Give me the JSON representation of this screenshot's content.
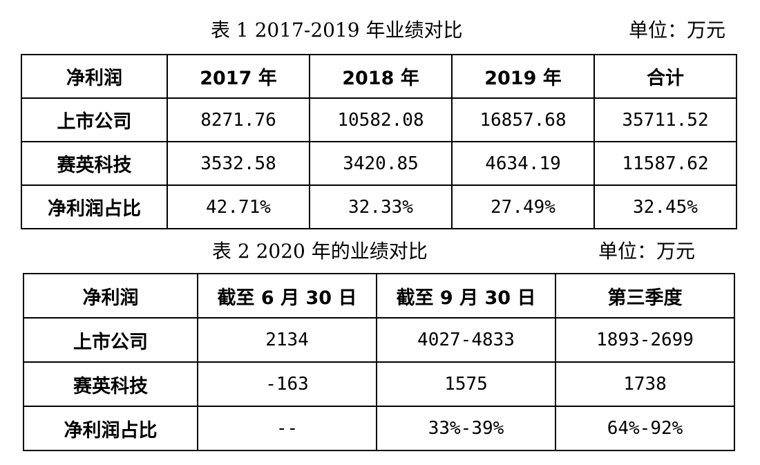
{
  "table1": {
    "caption": "表 1   2017-2019 年业绩对比",
    "unit": "单位：万元",
    "header": [
      "净利润",
      "2017 年",
      "2018 年",
      "2019 年",
      "合计"
    ],
    "rows": [
      {
        "label": "上市公司",
        "values": [
          "8271.76",
          "10582.08",
          "16857.68",
          "35711.52"
        ]
      },
      {
        "label": "赛英科技",
        "values": [
          "3532.58",
          "3420.85",
          "4634.19",
          "11587.62"
        ]
      },
      {
        "label": "净利润占比",
        "values": [
          "42.71%",
          "32.33%",
          "27.49%",
          "32.45%"
        ]
      }
    ]
  },
  "table2": {
    "caption": "表 2   2020 年的业绩对比",
    "unit": "单位：万元",
    "header": [
      "净利润",
      "截至 6 月 30 日",
      "截至 9 月 30 日",
      "第三季度"
    ],
    "rows": [
      {
        "label": "上市公司",
        "values": [
          "2134",
          "4027-4833",
          "1893-2699"
        ]
      },
      {
        "label": "赛英科技",
        "values": [
          "-163",
          "1575",
          "1738"
        ]
      },
      {
        "label": "净利润占比",
        "values": [
          "--",
          "33%-39%",
          "64%-92%"
        ]
      }
    ]
  }
}
